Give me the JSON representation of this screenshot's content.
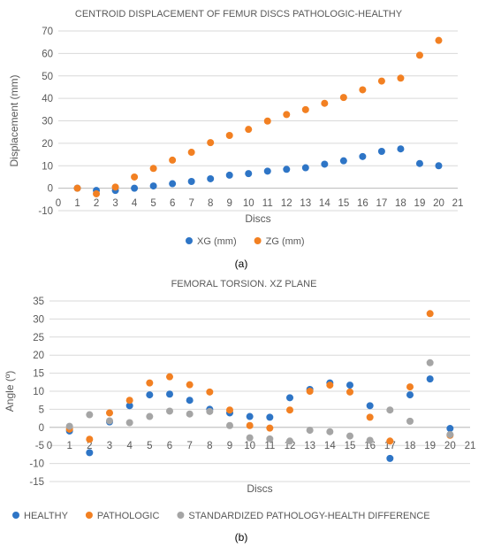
{
  "panels": [
    {
      "sub_label": "(a)",
      "legend_items": [
        "XG (mm)",
        "ZG (mm)"
      ]
    },
    {
      "sub_label": "(b)",
      "legend_items": [
        "HEALTHY",
        "PATHOLOGIC",
        "STANDARDIZED PATHOLOGY-HEALTH DIFFERENCE"
      ]
    }
  ],
  "chart_data": [
    {
      "type": "scatter",
      "title": "CENTROID DISPLACEMENT OF FEMUR DISCS PATHOLOGIC-HEALTHY",
      "xlabel": "Discs",
      "ylabel": "Displacement (mm)",
      "xlim": [
        0,
        21
      ],
      "ylim": [
        -10,
        70
      ],
      "x_ticks": [
        0,
        1,
        2,
        3,
        4,
        5,
        6,
        7,
        8,
        9,
        10,
        11,
        12,
        13,
        14,
        15,
        16,
        17,
        18,
        19,
        20,
        21
      ],
      "y_ticks": [
        -10,
        0,
        10,
        20,
        30,
        40,
        50,
        60,
        70
      ],
      "grid": "horizontal",
      "legend_position": "bottom",
      "series": [
        {
          "name": "XG (mm)",
          "color": "#2E75C6",
          "x": [
            1,
            2,
            3,
            4,
            5,
            6,
            7,
            8,
            9,
            10,
            11,
            12,
            13,
            14,
            15,
            16,
            17,
            18,
            19,
            20
          ],
          "y": [
            0,
            -1,
            -1,
            0,
            1,
            2,
            3,
            4.2,
            5.8,
            6.5,
            7.6,
            8.4,
            9.1,
            10.7,
            12.2,
            14.1,
            16.4,
            17.5,
            11,
            10
          ]
        },
        {
          "name": "ZG (mm)",
          "color": "#F28022",
          "x": [
            1,
            2,
            3,
            4,
            5,
            6,
            7,
            8,
            9,
            10,
            11,
            12,
            13,
            14,
            15,
            16,
            17,
            18,
            19,
            20
          ],
          "y": [
            0,
            -2.5,
            0.5,
            5,
            8.8,
            12.5,
            16,
            20.3,
            23.5,
            26.2,
            29.9,
            32.8,
            35,
            37.8,
            40.4,
            43.8,
            47.7,
            49,
            59.2,
            65.8
          ]
        }
      ]
    },
    {
      "type": "scatter",
      "title": "FEMORAL TORSION. XZ PLANE",
      "xlabel": "Discs",
      "ylabel": "Angle (º)",
      "xlim": [
        0,
        21
      ],
      "ylim": [
        -15,
        35
      ],
      "x_ticks": [
        0,
        1,
        2,
        3,
        4,
        5,
        6,
        7,
        8,
        9,
        10,
        11,
        12,
        13,
        14,
        15,
        16,
        17,
        18,
        19,
        20,
        21
      ],
      "y_ticks": [
        -15,
        -10,
        -5,
        0,
        5,
        10,
        15,
        20,
        25,
        30,
        35
      ],
      "grid": "horizontal",
      "legend_position": "bottom",
      "series": [
        {
          "name": "HEALTHY",
          "color": "#2E75C6",
          "x": [
            1,
            2,
            3,
            4,
            5,
            6,
            7,
            8,
            9,
            10,
            11,
            12,
            13,
            14,
            15,
            16,
            17,
            18,
            19,
            20
          ],
          "y": [
            -1,
            -7,
            1.5,
            6,
            9,
            9.2,
            7.5,
            5,
            4,
            3,
            2.8,
            8.2,
            10.5,
            12.3,
            11.7,
            6,
            -8.6,
            9,
            13.4,
            -0.3
          ]
        },
        {
          "name": "PATHOLOGIC",
          "color": "#F28022",
          "x": [
            1,
            2,
            3,
            4,
            5,
            6,
            7,
            8,
            9,
            10,
            11,
            12,
            13,
            14,
            15,
            16,
            17,
            18,
            19,
            20
          ],
          "y": [
            -0.5,
            -3.3,
            4,
            7.5,
            12.3,
            14,
            11.8,
            9.8,
            4.8,
            0.5,
            -0.2,
            4.8,
            10,
            11.7,
            9.8,
            2.8,
            -3.8,
            11.2,
            31.5,
            -2.2
          ]
        },
        {
          "name": "STANDARDIZED PATHOLOGY-HEALTH DIFFERENCE",
          "color": "#A5A5A5",
          "x": [
            1,
            2,
            3,
            4,
            5,
            6,
            7,
            8,
            9,
            10,
            11,
            12,
            13,
            14,
            15,
            16,
            17,
            18,
            19,
            20
          ],
          "y": [
            0.3,
            3.5,
            1.8,
            1.3,
            3,
            4.5,
            3.7,
            4.4,
            0.5,
            -2.9,
            -3.2,
            -3.8,
            -0.8,
            -1.2,
            -2.4,
            -3.6,
            4.8,
            1.7,
            17.9,
            -2
          ]
        }
      ]
    }
  ]
}
